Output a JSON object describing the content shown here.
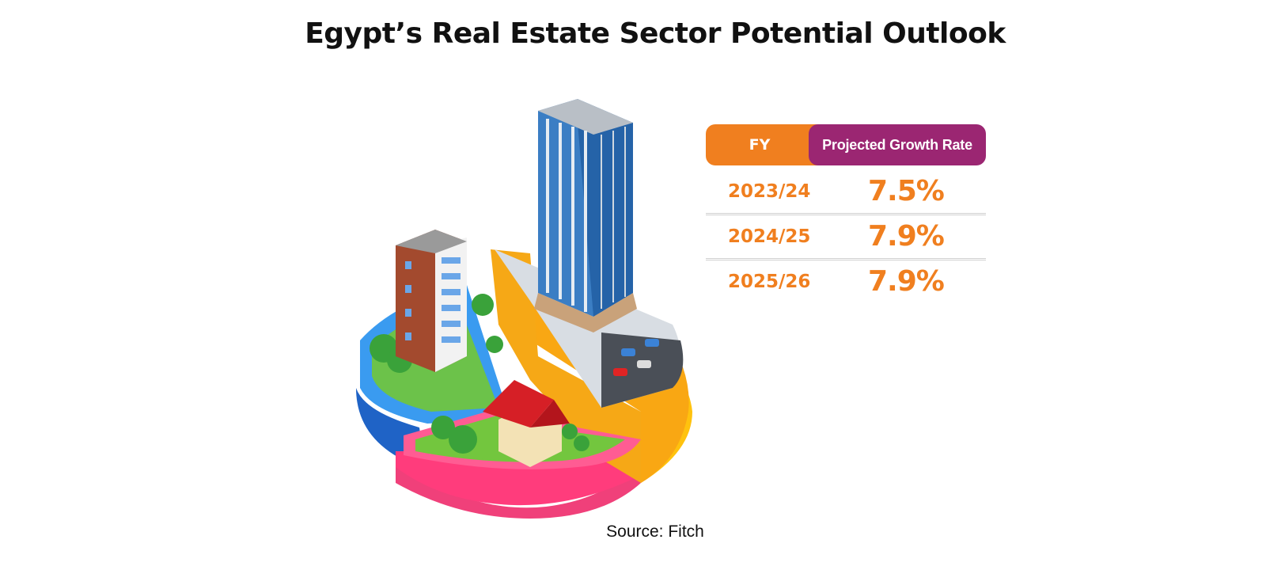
{
  "chart_data": {
    "type": "table",
    "title": "Egypt’s Real Estate Sector Potential Outlook",
    "columns": [
      "FY",
      "Projected Growth Rate"
    ],
    "rows": [
      {
        "fy": "2023/24",
        "rate": "7.5%"
      },
      {
        "fy": "2024/25",
        "rate": "7.9%"
      },
      {
        "fy": "2025/26",
        "rate": "7.9%"
      }
    ],
    "source": "Source: Fitch"
  },
  "colors": {
    "accent_orange": "#f07f1f",
    "accent_purple": "#9b2672"
  },
  "illustration": {
    "icon": "isometric-pie-chart-buildings-icon"
  }
}
